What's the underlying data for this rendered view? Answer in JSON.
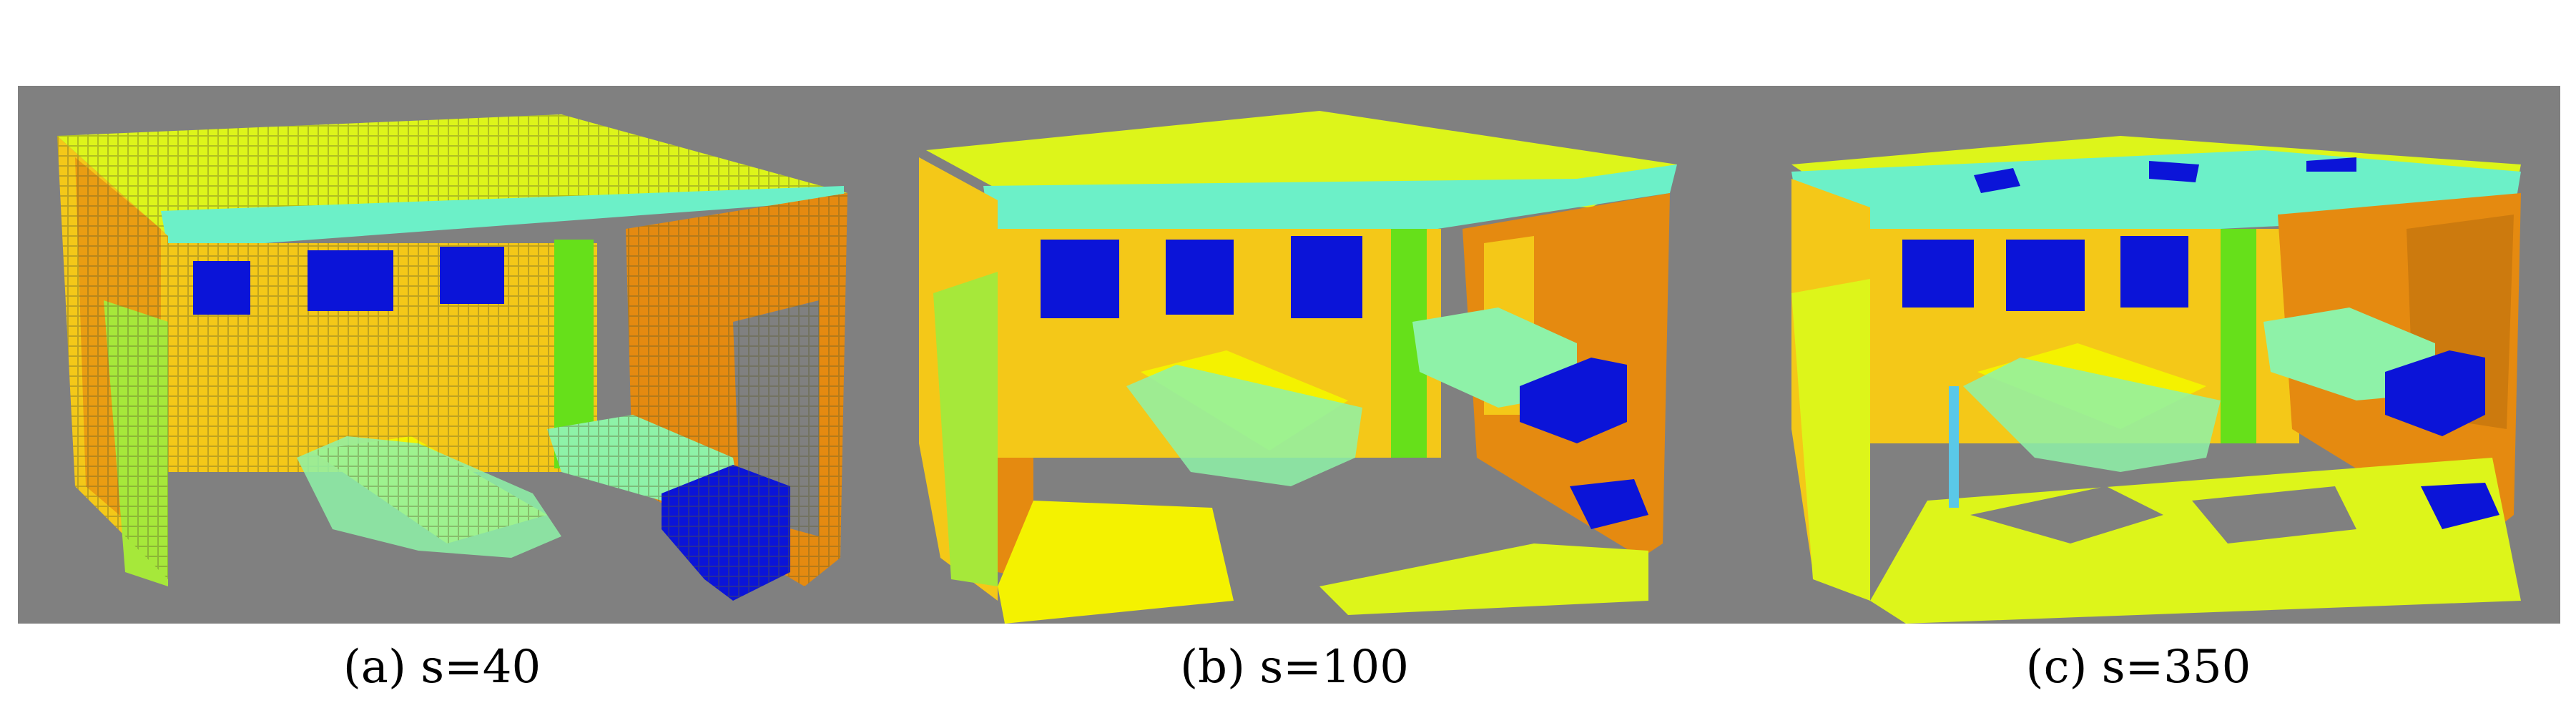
{
  "figure": {
    "panels": [
      {
        "caption": "(a) s=40"
      },
      {
        "caption": "(b) s=100"
      },
      {
        "caption": "(c) s=350"
      }
    ]
  },
  "colors": {
    "background": "#808080",
    "ceiling": "#ddf51a",
    "wall_yellow": "#f4c818",
    "wall_orange": "#e58a10",
    "window_blue": "#0b14d8",
    "beam_cyan": "#6cf0c8",
    "furniture_mint": "#8ef2a8",
    "table_yellow": "#f4f200",
    "green": "#66e01a"
  }
}
